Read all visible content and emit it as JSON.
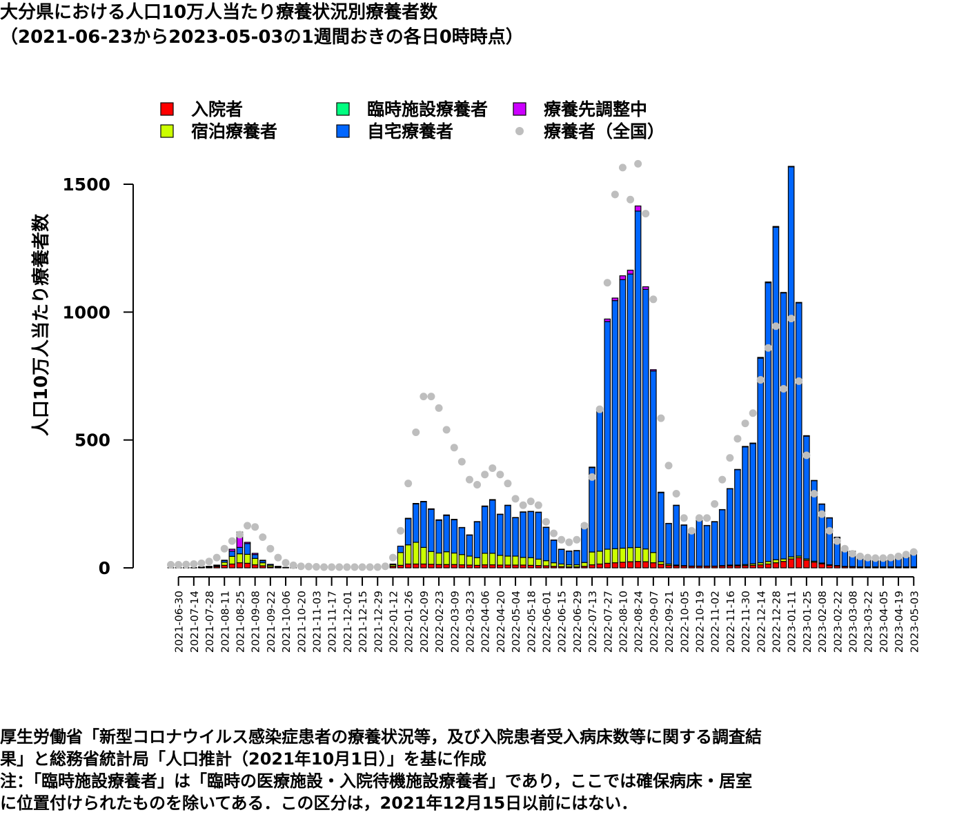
{
  "header": {
    "title_line1": "大分県における人口10万人当たり療養状況別療養者数",
    "title_line2": "（2021-06-23から2023-05-03の1週間おきの各日0時時点）"
  },
  "notes": {
    "line1": "厚生労働省「新型コロナウイルス感染症患者の療養状況等，及び入院患者受入病床数等に関する調査結",
    "line2": "果」と総務省統計局「人口推計（2021年10月1日）」を基に作成",
    "line3": "注：「臨時施設療養者」は「臨時の医療施設・入院待機施設療養者」であり，ここでは確保病床・居室",
    "line4": "に位置付けられたものを除いてある．この区分は，2021年12月15日以前にはない．"
  },
  "colors": {
    "hospitalized": "#ff0000",
    "lodging": "#ccff00",
    "temporary_facility": "#00ff80",
    "home": "#0066ff",
    "adjusting": "#cc00ff",
    "national": "#bebebe"
  },
  "chart_data": {
    "type": "bar",
    "stacked": true,
    "ylabel": "人口10万人当たり療養者数",
    "ylim": [
      0,
      1600
    ],
    "yticks": [
      0,
      500,
      1000,
      1500
    ],
    "legend_position": "top",
    "x": [
      "2021-06-23",
      "2021-06-30",
      "2021-07-07",
      "2021-07-14",
      "2021-07-21",
      "2021-07-28",
      "2021-08-04",
      "2021-08-11",
      "2021-08-18",
      "2021-08-25",
      "2021-09-01",
      "2021-09-08",
      "2021-09-15",
      "2021-09-22",
      "2021-09-29",
      "2021-10-06",
      "2021-10-13",
      "2021-10-20",
      "2021-10-27",
      "2021-11-03",
      "2021-11-10",
      "2021-11-17",
      "2021-11-24",
      "2021-12-01",
      "2021-12-08",
      "2021-12-15",
      "2021-12-22",
      "2021-12-29",
      "2022-01-05",
      "2022-01-12",
      "2022-01-19",
      "2022-01-26",
      "2022-02-02",
      "2022-02-09",
      "2022-02-16",
      "2022-02-23",
      "2022-03-02",
      "2022-03-09",
      "2022-03-16",
      "2022-03-23",
      "2022-03-30",
      "2022-04-06",
      "2022-04-13",
      "2022-04-20",
      "2022-04-27",
      "2022-05-04",
      "2022-05-11",
      "2022-05-18",
      "2022-05-25",
      "2022-06-01",
      "2022-06-08",
      "2022-06-15",
      "2022-06-22",
      "2022-06-29",
      "2022-07-06",
      "2022-07-13",
      "2022-07-20",
      "2022-07-27",
      "2022-08-03",
      "2022-08-10",
      "2022-08-17",
      "2022-08-24",
      "2022-08-31",
      "2022-09-07",
      "2022-09-14",
      "2022-09-21",
      "2022-09-28",
      "2022-10-05",
      "2022-10-12",
      "2022-10-19",
      "2022-10-26",
      "2022-11-02",
      "2022-11-09",
      "2022-11-16",
      "2022-11-23",
      "2022-11-30",
      "2022-12-07",
      "2022-12-14",
      "2022-12-21",
      "2022-12-28",
      "2023-01-04",
      "2023-01-11",
      "2023-01-18",
      "2023-01-25",
      "2023-02-01",
      "2023-02-08",
      "2023-02-15",
      "2023-02-22",
      "2023-03-01",
      "2023-03-08",
      "2023-03-15",
      "2023-03-22",
      "2023-03-29",
      "2023-04-05",
      "2023-04-12",
      "2023-04-19",
      "2023-04-26",
      "2023-05-03"
    ],
    "x_tick_labels": [
      "2021-06-30",
      "2021-07-14",
      "2021-07-28",
      "2021-08-11",
      "2021-08-25",
      "2021-09-08",
      "2021-09-22",
      "2021-10-06",
      "2021-10-20",
      "2021-11-03",
      "2021-11-17",
      "2021-12-01",
      "2021-12-15",
      "2021-12-29",
      "2022-01-12",
      "2022-01-26",
      "2022-02-09",
      "2022-02-23",
      "2022-03-09",
      "2022-03-23",
      "2022-04-06",
      "2022-04-20",
      "2022-05-04",
      "2022-05-18",
      "2022-06-01",
      "2022-06-15",
      "2022-06-29",
      "2022-07-13",
      "2022-07-27",
      "2022-08-10",
      "2022-08-24",
      "2022-09-07",
      "2022-09-21",
      "2022-10-05",
      "2022-10-19",
      "2022-11-02",
      "2022-11-16",
      "2022-11-30",
      "2022-12-14",
      "2022-12-28",
      "2023-01-11",
      "2023-01-25",
      "2023-02-08",
      "2023-02-22",
      "2023-03-08",
      "2023-03-22",
      "2023-04-05",
      "2023-04-19",
      "2023-05-03"
    ],
    "series": [
      {
        "name": "入院者",
        "key": "hospitalized",
        "values": [
          1,
          1,
          1,
          1,
          2,
          3,
          5,
          10,
          15,
          20,
          18,
          12,
          8,
          4,
          2,
          1,
          1,
          1,
          0,
          0,
          0,
          0,
          0,
          0,
          0,
          0,
          0,
          0,
          1,
          6,
          10,
          15,
          15,
          15,
          14,
          13,
          13,
          13,
          12,
          11,
          10,
          12,
          12,
          11,
          11,
          11,
          11,
          10,
          9,
          8,
          6,
          5,
          4,
          4,
          6,
          12,
          15,
          18,
          20,
          22,
          24,
          25,
          24,
          20,
          14,
          10,
          8,
          7,
          6,
          6,
          6,
          6,
          7,
          8,
          8,
          9,
          10,
          12,
          15,
          20,
          25,
          35,
          40,
          30,
          22,
          16,
          10,
          7,
          5,
          4,
          3,
          3,
          3,
          3,
          3,
          3,
          3,
          3
        ]
      },
      {
        "name": "宿泊療養者",
        "key": "lodging",
        "values": [
          0,
          0,
          0,
          0,
          1,
          1,
          3,
          12,
          30,
          35,
          35,
          25,
          12,
          6,
          2,
          1,
          0,
          0,
          0,
          0,
          0,
          0,
          0,
          0,
          0,
          0,
          0,
          0,
          1,
          6,
          50,
          75,
          85,
          65,
          50,
          45,
          50,
          45,
          40,
          35,
          30,
          45,
          45,
          38,
          35,
          35,
          30,
          30,
          25,
          20,
          14,
          10,
          8,
          8,
          15,
          50,
          50,
          55,
          55,
          55,
          55,
          55,
          50,
          40,
          10,
          5,
          3,
          2,
          1,
          1,
          1,
          1,
          2,
          3,
          3,
          4,
          6,
          8,
          10,
          12,
          10,
          8,
          6,
          5,
          4,
          3,
          2,
          2,
          1,
          1,
          1,
          1,
          1,
          1,
          1,
          1,
          1,
          1
        ]
      },
      {
        "name": "臨時施設療養者",
        "key": "temporary_facility",
        "values": [
          0,
          0,
          0,
          0,
          0,
          0,
          0,
          0,
          0,
          0,
          0,
          0,
          0,
          0,
          0,
          0,
          0,
          0,
          0,
          0,
          0,
          0,
          0,
          0,
          0,
          0,
          0,
          0,
          0,
          0,
          0,
          0,
          0,
          0,
          0,
          0,
          0,
          0,
          0,
          0,
          0,
          0,
          0,
          0,
          0,
          0,
          0,
          0,
          0,
          0,
          0,
          0,
          0,
          0,
          0,
          0,
          0,
          0,
          0,
          0,
          0,
          0,
          0,
          0,
          0,
          0,
          0,
          0,
          0,
          0,
          0,
          0,
          0,
          0,
          0,
          0,
          0,
          0,
          0,
          0,
          0,
          0,
          0,
          0,
          0,
          0,
          0,
          0,
          0,
          0,
          0,
          0,
          0,
          0,
          0,
          0,
          0,
          0
        ]
      },
      {
        "name": "自宅療養者",
        "key": "home",
        "values": [
          0,
          0,
          0,
          0,
          1,
          2,
          3,
          7,
          20,
          25,
          42,
          15,
          8,
          4,
          2,
          0,
          0,
          0,
          0,
          0,
          0,
          0,
          0,
          0,
          0,
          0,
          0,
          0,
          1,
          3,
          25,
          102,
          150,
          178,
          165,
          128,
          142,
          130,
          105,
          82,
          140,
          183,
          208,
          160,
          198,
          150,
          177,
          180,
          183,
          130,
          88,
          57,
          53,
          55,
          150,
          330,
          545,
          890,
          970,
          1050,
          1070,
          1315,
          1015,
          710,
          270,
          158,
          233,
          158,
          143,
          178,
          158,
          173,
          218,
          298,
          373,
          460,
          470,
          800,
          1090,
          1300,
          1040,
          1525,
          990,
          480,
          315,
          230,
          183,
          110,
          70,
          60,
          45,
          38,
          33,
          32,
          33,
          38,
          45,
          55
        ]
      },
      {
        "name": "療養先調整中",
        "key": "adjusting",
        "values": [
          0,
          0,
          0,
          0,
          0,
          0,
          0,
          1,
          8,
          60,
          5,
          5,
          2,
          0,
          0,
          0,
          0,
          0,
          0,
          0,
          0,
          0,
          0,
          0,
          0,
          0,
          0,
          0,
          0,
          0,
          0,
          2,
          2,
          2,
          2,
          2,
          2,
          2,
          1,
          1,
          1,
          2,
          2,
          1,
          1,
          1,
          1,
          1,
          1,
          1,
          1,
          1,
          1,
          1,
          1,
          2,
          5,
          10,
          10,
          15,
          15,
          20,
          10,
          5,
          2,
          1,
          1,
          1,
          1,
          1,
          1,
          1,
          1,
          1,
          1,
          2,
          2,
          3,
          3,
          3,
          2,
          2,
          2,
          2,
          1,
          1,
          1,
          1,
          0,
          0,
          0,
          0,
          0,
          0,
          0,
          0,
          0,
          0
        ]
      }
    ],
    "points": {
      "name": "療養者（全国）",
      "key": "national",
      "values": [
        12,
        12,
        13,
        15,
        18,
        25,
        40,
        75,
        105,
        130,
        165,
        160,
        120,
        75,
        40,
        20,
        10,
        6,
        5,
        4,
        3,
        3,
        3,
        3,
        3,
        3,
        3,
        3,
        6,
        40,
        145,
        330,
        530,
        670,
        670,
        625,
        540,
        470,
        415,
        345,
        325,
        365,
        390,
        365,
        330,
        270,
        245,
        260,
        245,
        180,
        135,
        110,
        100,
        110,
        165,
        355,
        620,
        1115,
        1460,
        1565,
        1440,
        1580,
        1385,
        1050,
        585,
        400,
        290,
        195,
        145,
        195,
        195,
        250,
        345,
        430,
        505,
        565,
        605,
        735,
        860,
        945,
        700,
        975,
        730,
        440,
        290,
        210,
        145,
        105,
        75,
        55,
        45,
        40,
        38,
        38,
        40,
        45,
        52,
        62
      ]
    }
  }
}
